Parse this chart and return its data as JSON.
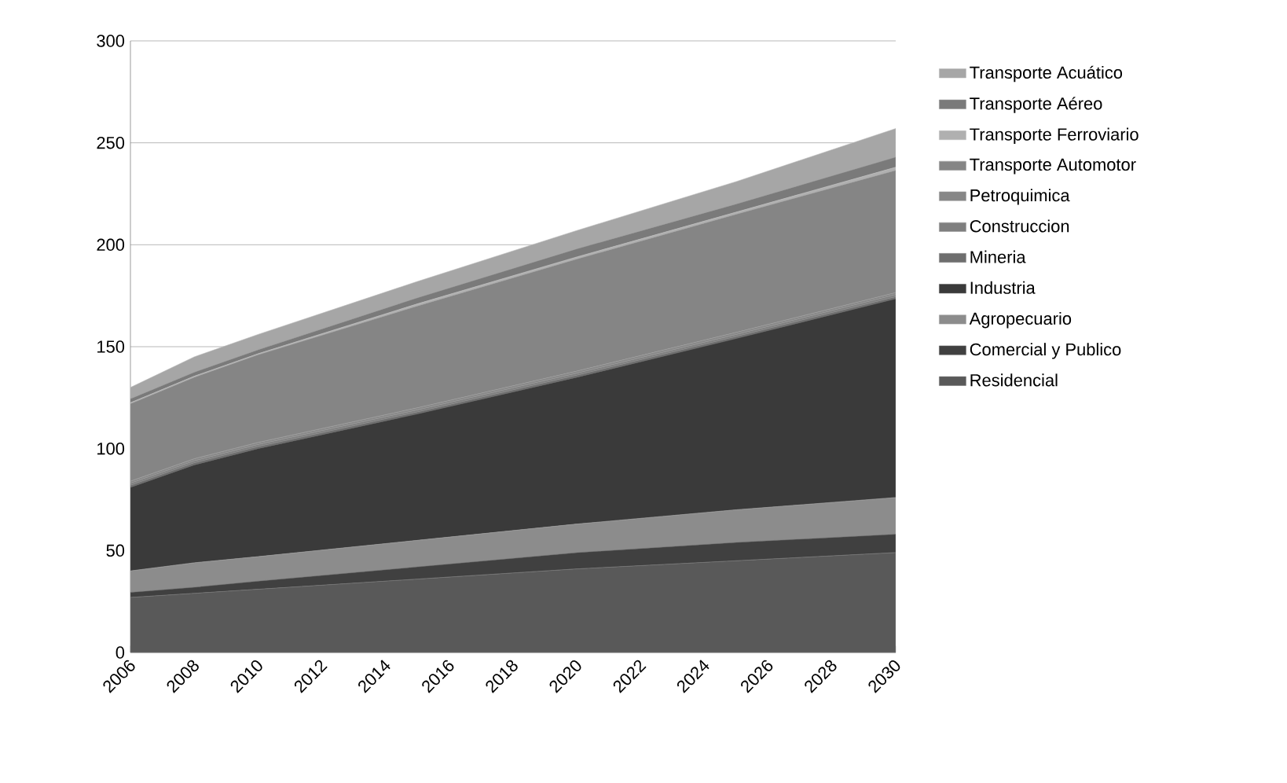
{
  "chart_data": {
    "type": "area",
    "stacked": true,
    "x": [
      2006,
      2008,
      2010,
      2015,
      2020,
      2025,
      2030
    ],
    "xlim": [
      2006,
      2030
    ],
    "xticks": [
      2006,
      2008,
      2010,
      2012,
      2014,
      2016,
      2018,
      2020,
      2022,
      2024,
      2026,
      2028,
      2030
    ],
    "ylim": [
      0,
      300
    ],
    "yticks": [
      0,
      50,
      100,
      150,
      200,
      250,
      300
    ],
    "grid": "y",
    "legend": "right",
    "series": [
      {
        "name": "Residencial",
        "color": "#595959",
        "values": [
          27,
          29,
          31,
          36,
          41,
          45,
          49
        ]
      },
      {
        "name": "Comercial y Publico",
        "color": "#404040",
        "values": [
          2.5,
          3,
          4,
          6,
          8,
          9,
          9
        ]
      },
      {
        "name": "Agropecuario",
        "color": "#8c8c8c",
        "values": [
          10.5,
          12,
          12,
          13,
          14,
          16,
          18
        ]
      },
      {
        "name": "Industria",
        "color": "#3a3a3a",
        "values": [
          41,
          48,
          53,
          62,
          72,
          84,
          97.5
        ]
      },
      {
        "name": "Mineria",
        "color": "#6e6e6e",
        "values": [
          1,
          1,
          1,
          1,
          1,
          1,
          1
        ]
      },
      {
        "name": "Construccion",
        "color": "#7f7f7f",
        "values": [
          1,
          1,
          1,
          1,
          1,
          1,
          1
        ]
      },
      {
        "name": "Petroquimica",
        "color": "#878787",
        "values": [
          1,
          1,
          1,
          1,
          1,
          1,
          1
        ]
      },
      {
        "name": "Transporte Automotor",
        "color": "#858585",
        "values": [
          38,
          40,
          43,
          50,
          55,
          58,
          60
        ]
      },
      {
        "name": "Transporte Ferroviario",
        "color": "#b0b0b0",
        "values": [
          0.5,
          0.5,
          0.5,
          1,
          1,
          1,
          1.5
        ]
      },
      {
        "name": "Transporte Aéreo",
        "color": "#7a7a7a",
        "values": [
          2,
          2,
          2,
          3,
          4,
          4,
          5
        ]
      },
      {
        "name": "Transporte Acuático",
        "color": "#a6a6a6",
        "values": [
          5.5,
          7.5,
          7.5,
          8,
          9,
          11,
          14
        ]
      }
    ]
  }
}
